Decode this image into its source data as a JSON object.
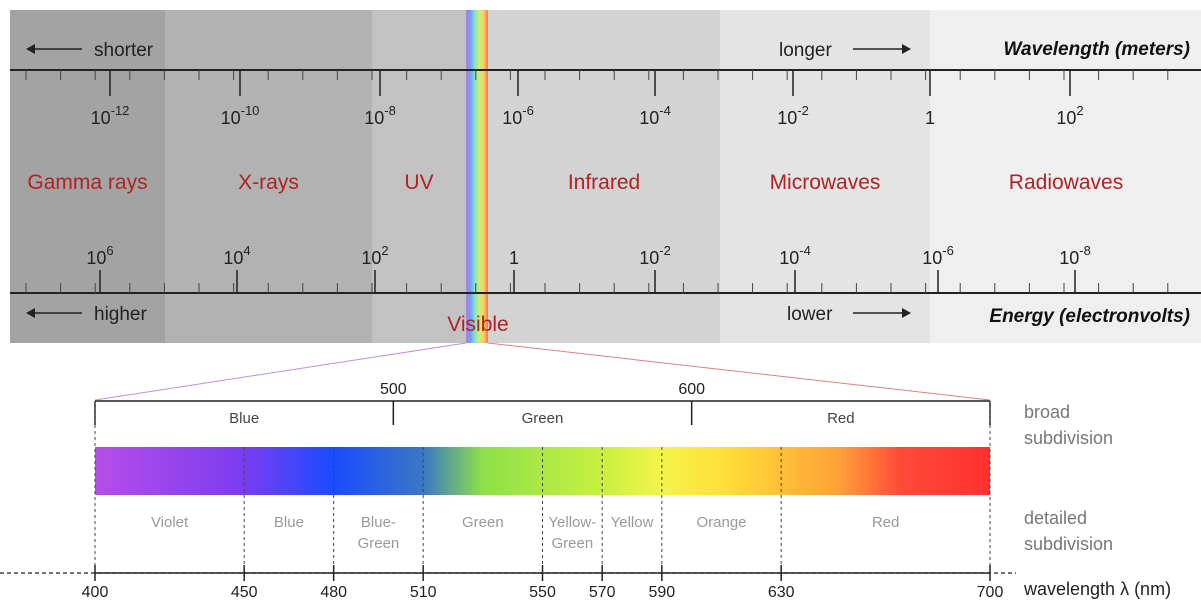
{
  "spectrum": {
    "regions": [
      {
        "name": "Gamma rays",
        "x0": 10,
        "x1": 165,
        "color": "#a3a3a3"
      },
      {
        "name": "X-rays",
        "x0": 165,
        "x1": 372,
        "color": "#b2b2b2"
      },
      {
        "name": "UV",
        "x0": 372,
        "x1": 466,
        "color": "#c2c2c2"
      },
      {
        "name": "Infrared",
        "x0": 488,
        "x1": 720,
        "color": "#d3d3d3"
      },
      {
        "name": "Microwaves",
        "x0": 720,
        "x1": 930,
        "color": "#e4e4e4"
      },
      {
        "name": "Radiowaves",
        "x0": 930,
        "x1": 1201,
        "color": "#efefef"
      }
    ],
    "visible_label": "Visible",
    "wavelength_axis": {
      "title": "Wavelength (meters)",
      "shorter": "shorter",
      "longer": "longer",
      "ticks": [
        {
          "base": "10",
          "exp": "-12",
          "x": 110
        },
        {
          "base": "10",
          "exp": "-10",
          "x": 240
        },
        {
          "base": "10",
          "exp": "-8",
          "x": 380
        },
        {
          "base": "10",
          "exp": "-6",
          "x": 518
        },
        {
          "base": "10",
          "exp": "-4",
          "x": 655
        },
        {
          "base": "10",
          "exp": "-2",
          "x": 793
        },
        {
          "base": "1",
          "exp": "",
          "x": 930
        },
        {
          "base": "10",
          "exp": "2",
          "x": 1070
        }
      ]
    },
    "energy_axis": {
      "title": "Energy (electronvolts)",
      "higher": "higher",
      "lower": "lower",
      "ticks": [
        {
          "base": "10",
          "exp": "6",
          "x": 100
        },
        {
          "base": "10",
          "exp": "4",
          "x": 237
        },
        {
          "base": "10",
          "exp": "2",
          "x": 375
        },
        {
          "base": "1",
          "exp": "",
          "x": 514
        },
        {
          "base": "10",
          "exp": "-2",
          "x": 655
        },
        {
          "base": "10",
          "exp": "-4",
          "x": 795
        },
        {
          "base": "10",
          "exp": "-6",
          "x": 938
        },
        {
          "base": "10",
          "exp": "-8",
          "x": 1075
        }
      ]
    }
  },
  "visible_spectrum": {
    "nm_min": 400,
    "nm_max": 700,
    "broad_major_ticks": [
      "500",
      "600"
    ],
    "broad": [
      {
        "label": "Blue",
        "from": 400,
        "to": 500
      },
      {
        "label": "Green",
        "from": 500,
        "to": 600
      },
      {
        "label": "Red",
        "from": 600,
        "to": 700
      }
    ],
    "broad_title_line1": "broad",
    "broad_title_line2": "subdivision",
    "detailed": [
      {
        "lines": [
          "Violet"
        ],
        "from": 400,
        "to": 450
      },
      {
        "lines": [
          "Blue"
        ],
        "from": 450,
        "to": 480
      },
      {
        "lines": [
          "Blue-",
          "Green"
        ],
        "from": 480,
        "to": 510
      },
      {
        "lines": [
          "Green"
        ],
        "from": 510,
        "to": 550
      },
      {
        "lines": [
          "Yellow-",
          "Green"
        ],
        "from": 550,
        "to": 570
      },
      {
        "lines": [
          "Yellow"
        ],
        "from": 570,
        "to": 590
      },
      {
        "lines": [
          "Orange"
        ],
        "from": 590,
        "to": 630
      },
      {
        "lines": [
          "Red"
        ],
        "from": 630,
        "to": 700
      }
    ],
    "detailed_title_line1": "detailed",
    "detailed_title_line2": "subdivision",
    "nm_ticks": [
      "400",
      "450",
      "480",
      "510",
      "550",
      "570",
      "590",
      "630",
      "700"
    ],
    "axis_label": "wavelength λ (nm)"
  }
}
